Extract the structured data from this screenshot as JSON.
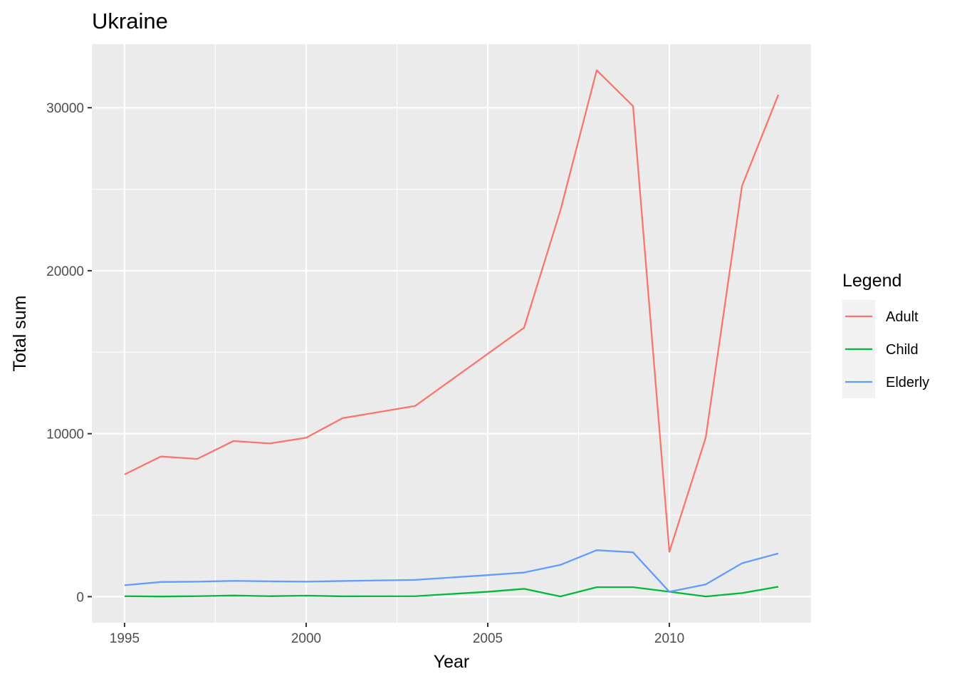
{
  "chart_data": {
    "type": "line",
    "title": "Ukraine",
    "xlabel": "Year",
    "ylabel": "Total sum",
    "x_ticks": [
      1995,
      2000,
      2005,
      2010
    ],
    "y_ticks": [
      0,
      10000,
      20000,
      30000
    ],
    "xlim": [
      1994.1,
      2013.9
    ],
    "ylim": [
      -1600,
      33900
    ],
    "grid": true,
    "legend": {
      "title": "Legend",
      "position": "right"
    },
    "series": [
      {
        "name": "Adult",
        "color": "#F8766D",
        "x": [
          1995,
          1996,
          1997,
          1998,
          1999,
          2000,
          2001,
          2003,
          2005,
          2006,
          2007,
          2008,
          2009,
          2010,
          2011,
          2012,
          2013
        ],
        "values": [
          7500,
          8600,
          8450,
          9550,
          9400,
          9750,
          10950,
          11700,
          14900,
          16500,
          23700,
          32300,
          30100,
          2750,
          9750,
          25200,
          30800
        ]
      },
      {
        "name": "Child",
        "color": "#00BA38",
        "x": [
          1995,
          1996,
          1997,
          1998,
          1999,
          2000,
          2001,
          2003,
          2005,
          2006,
          2007,
          2008,
          2009,
          2010,
          2011,
          2012,
          2013
        ],
        "values": [
          30,
          10,
          30,
          70,
          30,
          60,
          20,
          30,
          300,
          480,
          10,
          580,
          580,
          300,
          10,
          220,
          610
        ]
      },
      {
        "name": "Elderly",
        "color": "#619CFF",
        "x": [
          1995,
          1996,
          1997,
          1998,
          1999,
          2000,
          2001,
          2003,
          2005,
          2006,
          2007,
          2008,
          2009,
          2010,
          2011,
          2012,
          2013
        ],
        "values": [
          700,
          900,
          920,
          970,
          940,
          920,
          960,
          1030,
          1320,
          1480,
          1950,
          2850,
          2720,
          300,
          750,
          2050,
          2650
        ]
      }
    ]
  }
}
